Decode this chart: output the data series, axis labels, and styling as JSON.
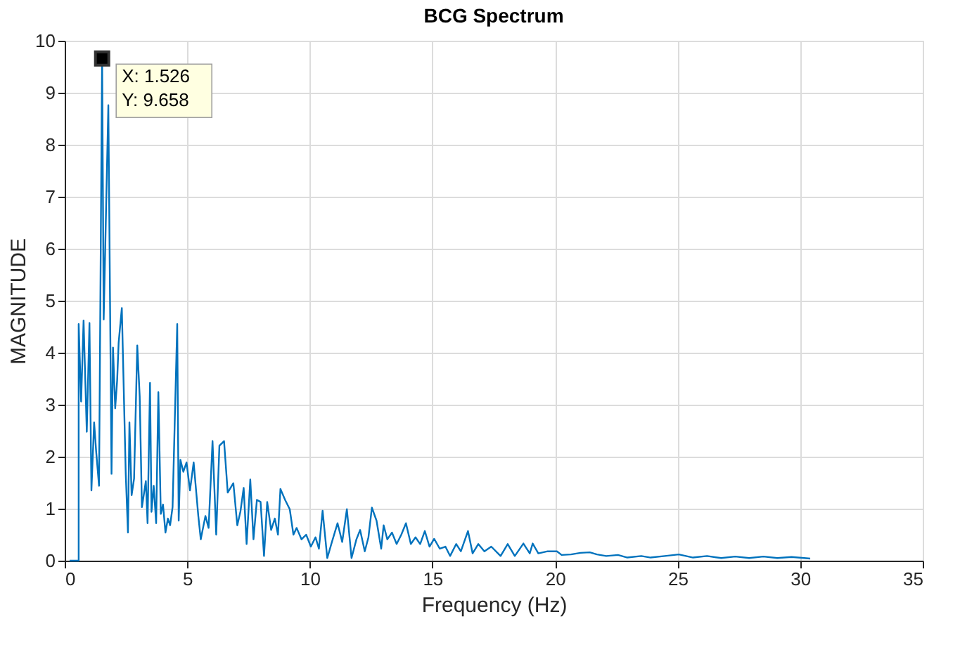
{
  "chart_data": {
    "type": "line",
    "title": "BCG Spectrum",
    "xlabel": "Frequency (Hz)",
    "ylabel": "MAGNITUDE",
    "xlim": [
      0,
      35
    ],
    "xticks": [
      0,
      5,
      10,
      15,
      20,
      25,
      30,
      35
    ],
    "ylim": [
      0,
      10
    ],
    "yticks": [
      0,
      1,
      2,
      3,
      4,
      5,
      6,
      7,
      8,
      9,
      10
    ],
    "grid": true,
    "marker": "none",
    "line_style": "solid",
    "annotations": [
      {
        "text": "X: 1.526\nY: 9.658",
        "x": 1.526,
        "y": 9.658
      }
    ],
    "series": [
      {
        "color": "#0072bd",
        "x": [
          0.2,
          0.57,
          0.57,
          0.67,
          0.77,
          0.9,
          1.01,
          1.09,
          1.2,
          1.28,
          1.4,
          1.526,
          1.59,
          1.78,
          1.91,
          1.97,
          2.06,
          2.14,
          2.2,
          2.33,
          2.49,
          2.58,
          2.64,
          2.73,
          2.83,
          2.96,
          3.06,
          3.15,
          3.31,
          3.38,
          3.48,
          3.54,
          3.63,
          3.73,
          3.82,
          3.92,
          4.01,
          4.11,
          4.21,
          4.3,
          4.4,
          4.59,
          4.65,
          4.72,
          4.84,
          4.97,
          5.11,
          5.26,
          5.45,
          5.55,
          5.74,
          5.87,
          6.03,
          6.18,
          6.31,
          6.5,
          6.65,
          6.88,
          7.04,
          7.17,
          7.3,
          7.42,
          7.57,
          7.7,
          7.84,
          7.99,
          8.13,
          8.26,
          8.42,
          8.57,
          8.7,
          8.8,
          8.99,
          9.18,
          9.33,
          9.46,
          9.66,
          9.85,
          10.04,
          10.23,
          10.37,
          10.52,
          10.71,
          10.9,
          11.13,
          11.32,
          11.51,
          11.7,
          11.9,
          12.05,
          12.24,
          12.39,
          12.53,
          12.72,
          12.91,
          13.01,
          13.16,
          13.35,
          13.54,
          13.73,
          13.92,
          14.12,
          14.31,
          14.5,
          14.69,
          14.88,
          15.07,
          15.3,
          15.53,
          15.72,
          15.97,
          16.16,
          16.45,
          16.64,
          16.87,
          17.12,
          17.4,
          17.78,
          18.07,
          18.36,
          18.71,
          18.97,
          19.09,
          19.32,
          19.7,
          20.08,
          20.27,
          20.65,
          21.04,
          21.42,
          21.71,
          22.09,
          22.57,
          22.95,
          23.52,
          23.9,
          24.48,
          25.05,
          25.63,
          26.2,
          26.78,
          27.35,
          27.92,
          28.5,
          29.07,
          29.65,
          30.41
        ],
        "values": [
          0.0,
          0.0,
          4.55,
          3.06,
          4.62,
          2.48,
          4.57,
          1.35,
          2.66,
          2.12,
          1.44,
          9.658,
          4.64,
          8.76,
          1.67,
          4.1,
          2.93,
          3.47,
          4.19,
          4.86,
          1.67,
          0.54,
          2.66,
          1.26,
          1.58,
          4.14,
          3.15,
          1.03,
          1.53,
          0.72,
          3.42,
          0.94,
          1.44,
          0.72,
          3.24,
          0.9,
          1.08,
          0.54,
          0.81,
          0.68,
          1.03,
          4.55,
          0.77,
          1.94,
          1.71,
          1.89,
          1.35,
          1.89,
          0.86,
          0.41,
          0.86,
          0.63,
          2.3,
          0.5,
          2.21,
          2.3,
          1.31,
          1.49,
          0.68,
          0.95,
          1.4,
          0.32,
          1.56,
          0.41,
          1.17,
          1.13,
          0.09,
          1.13,
          0.59,
          0.81,
          0.5,
          1.38,
          1.17,
          0.99,
          0.5,
          0.63,
          0.41,
          0.5,
          0.27,
          0.45,
          0.23,
          0.96,
          0.05,
          0.36,
          0.72,
          0.36,
          0.99,
          0.05,
          0.41,
          0.59,
          0.18,
          0.45,
          1.02,
          0.77,
          0.23,
          0.68,
          0.41,
          0.54,
          0.32,
          0.5,
          0.72,
          0.32,
          0.45,
          0.32,
          0.57,
          0.27,
          0.42,
          0.23,
          0.27,
          0.09,
          0.32,
          0.18,
          0.57,
          0.14,
          0.32,
          0.18,
          0.27,
          0.09,
          0.32,
          0.09,
          0.33,
          0.14,
          0.33,
          0.14,
          0.18,
          0.18,
          0.11,
          0.12,
          0.15,
          0.16,
          0.12,
          0.09,
          0.11,
          0.06,
          0.09,
          0.06,
          0.09,
          0.12,
          0.06,
          0.09,
          0.05,
          0.08,
          0.05,
          0.08,
          0.05,
          0.07,
          0.04
        ]
      }
    ]
  }
}
